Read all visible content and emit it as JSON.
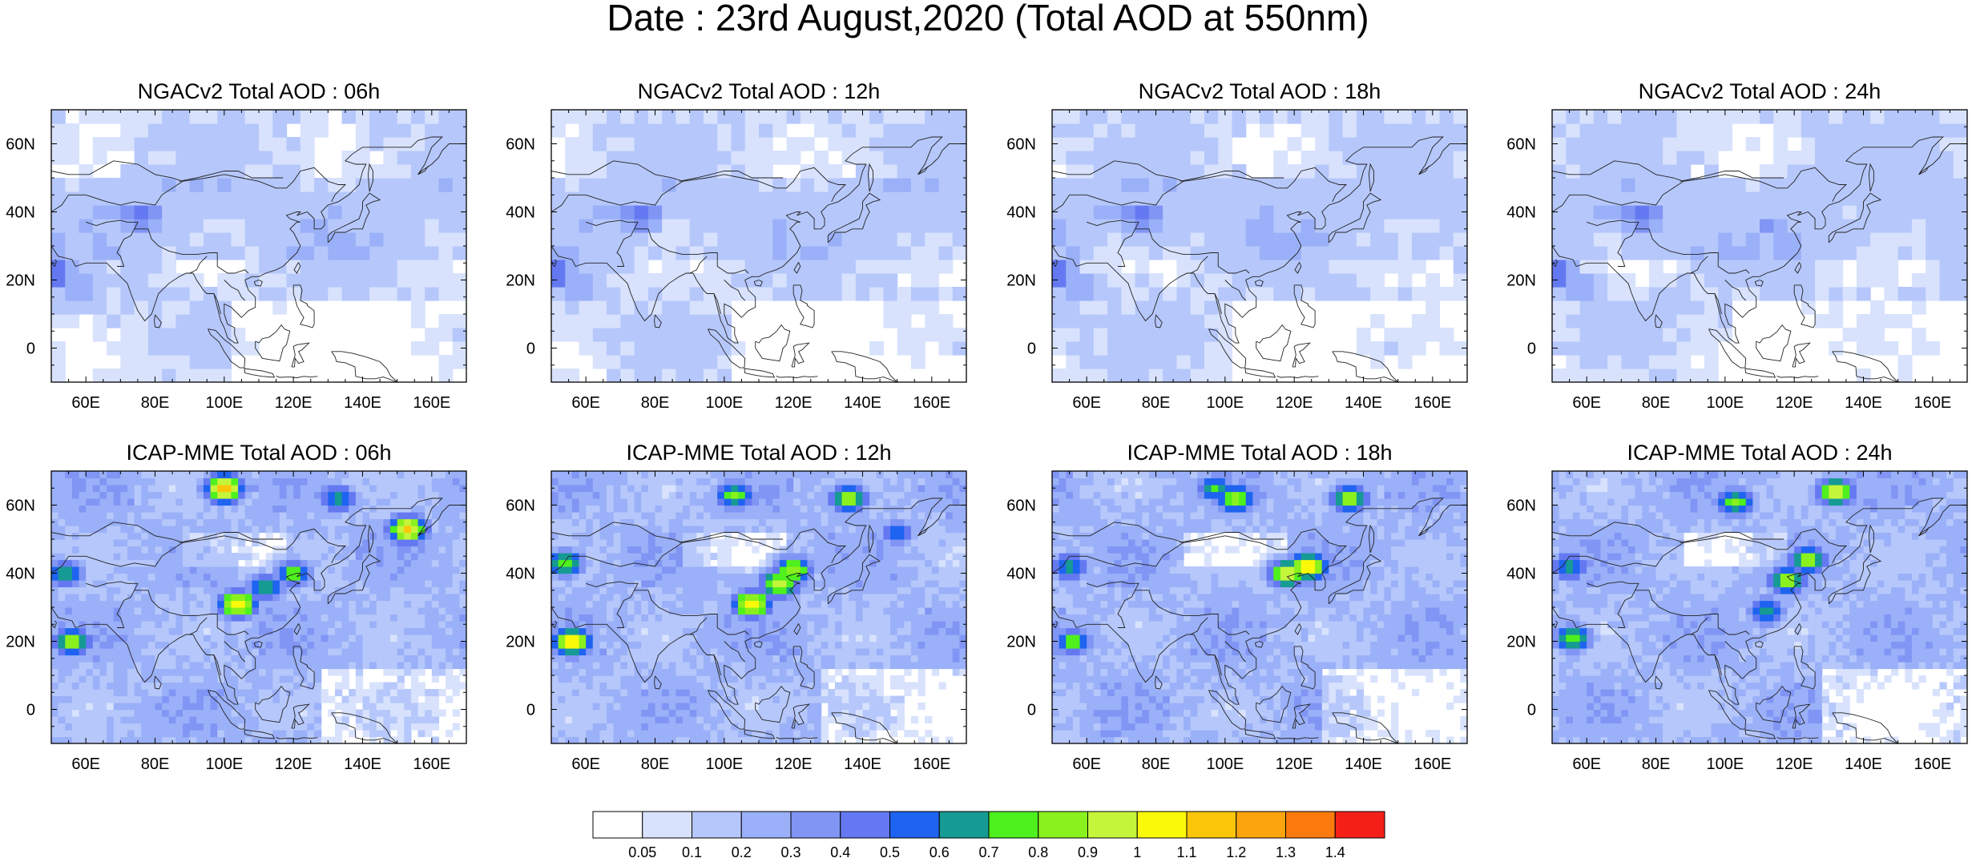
{
  "title": "Date : 23rd August,2020 (Total AOD at 550nm)",
  "panels": [
    {
      "title": "NGACv2 Total AOD : 06h",
      "model": "NGACv2",
      "hour": "06h"
    },
    {
      "title": "NGACv2 Total AOD : 12h",
      "model": "NGACv2",
      "hour": "12h"
    },
    {
      "title": "NGACv2 Total AOD : 18h",
      "model": "NGACv2",
      "hour": "18h"
    },
    {
      "title": "NGACv2 Total AOD : 24h",
      "model": "NGACv2",
      "hour": "24h"
    },
    {
      "title": "ICAP-MME Total AOD : 06h",
      "model": "ICAP-MME",
      "hour": "06h"
    },
    {
      "title": "ICAP-MME Total AOD : 12h",
      "model": "ICAP-MME",
      "hour": "12h"
    },
    {
      "title": "ICAP-MME Total AOD : 18h",
      "model": "ICAP-MME",
      "hour": "18h"
    },
    {
      "title": "ICAP-MME Total AOD : 24h",
      "model": "ICAP-MME",
      "hour": "24h"
    }
  ],
  "map_extent": {
    "lon": [
      50,
      170
    ],
    "lat": [
      -10,
      70
    ]
  },
  "lon_ticks": [
    "60E",
    "80E",
    "100E",
    "120E",
    "140E",
    "160E"
  ],
  "lon_tick_values": [
    60,
    80,
    100,
    120,
    140,
    160
  ],
  "lat_ticks": [
    "60N",
    "40N",
    "20N",
    "0"
  ],
  "lat_tick_values": [
    60,
    40,
    20,
    0
  ],
  "colorbar": {
    "labels": [
      "0.05",
      "0.1",
      "0.2",
      "0.3",
      "0.4",
      "0.5",
      "0.6",
      "0.7",
      "0.8",
      "0.9",
      "1",
      "1.1",
      "1.2",
      "1.3",
      "1.4"
    ],
    "colors": [
      "#ffffff",
      "#d8e2fd",
      "#b6c7fb",
      "#9ab0f8",
      "#8095f4",
      "#6479f1",
      "#1e64f0",
      "#169a94",
      "#4ef01e",
      "#8af01e",
      "#c4f53a",
      "#fbf90a",
      "#fbc60a",
      "#fba50e",
      "#fb7a0d",
      "#f42018"
    ]
  },
  "chart_data": {
    "type": "heatmap",
    "title": "Date : 23rd August,2020 (Total AOD at 550nm)",
    "variable": "Total AOD at 550nm",
    "xrange": [
      50,
      170
    ],
    "yrange": [
      -10,
      70
    ],
    "levels": [
      0.05,
      0.1,
      0.2,
      0.3,
      0.4,
      0.5,
      0.6,
      0.7,
      0.8,
      0.9,
      1,
      1.1,
      1.2,
      1.3,
      1.4
    ],
    "panels": [
      {
        "title": "NGACv2 Total AOD : 06h",
        "features": [
          {
            "lon": 52,
            "lat": 22,
            "aod": 0.5
          },
          {
            "lon": 58,
            "lat": 18,
            "aod": 0.4
          },
          {
            "lon": 76,
            "lat": 39,
            "aod": 0.5
          },
          {
            "lon": 65,
            "lat": 40,
            "aod": 0.3
          },
          {
            "lon": 100,
            "lat": 45,
            "aod": 0.2
          },
          {
            "lon": 115,
            "lat": 35,
            "aod": 0.2
          }
        ]
      },
      {
        "title": "NGACv2 Total AOD : 12h",
        "features": [
          {
            "lon": 52,
            "lat": 22,
            "aod": 0.5
          },
          {
            "lon": 58,
            "lat": 18,
            "aod": 0.4
          },
          {
            "lon": 76,
            "lat": 39,
            "aod": 0.5
          },
          {
            "lon": 65,
            "lat": 40,
            "aod": 0.3
          },
          {
            "lon": 105,
            "lat": 45,
            "aod": 0.2
          },
          {
            "lon": 118,
            "lat": 30,
            "aod": 0.2
          }
        ]
      },
      {
        "title": "NGACv2 Total AOD : 18h",
        "features": [
          {
            "lon": 52,
            "lat": 22,
            "aod": 0.5
          },
          {
            "lon": 58,
            "lat": 18,
            "aod": 0.4
          },
          {
            "lon": 76,
            "lat": 39,
            "aod": 0.5
          },
          {
            "lon": 65,
            "lat": 40,
            "aod": 0.3
          },
          {
            "lon": 112,
            "lat": 38,
            "aod": 0.3
          },
          {
            "lon": 120,
            "lat": 30,
            "aod": 0.3
          }
        ]
      },
      {
        "title": "NGACv2 Total AOD : 24h",
        "features": [
          {
            "lon": 52,
            "lat": 22,
            "aod": 0.5
          },
          {
            "lon": 58,
            "lat": 18,
            "aod": 0.4
          },
          {
            "lon": 76,
            "lat": 39,
            "aod": 0.5
          },
          {
            "lon": 65,
            "lat": 40,
            "aod": 0.3
          },
          {
            "lon": 112,
            "lat": 36,
            "aod": 0.3
          },
          {
            "lon": 118,
            "lat": 30,
            "aod": 0.3
          }
        ]
      },
      {
        "title": "ICAP-MME Total AOD : 06h",
        "features": [
          {
            "lon": 56,
            "lat": 20,
            "aod": 0.9
          },
          {
            "lon": 54,
            "lat": 40,
            "aod": 0.7
          },
          {
            "lon": 100,
            "lat": 65,
            "aod": 1.2
          },
          {
            "lon": 133,
            "lat": 62,
            "aod": 0.7
          },
          {
            "lon": 153,
            "lat": 53,
            "aod": 1.1
          },
          {
            "lon": 120,
            "lat": 40,
            "aod": 0.8
          },
          {
            "lon": 112,
            "lat": 36,
            "aod": 0.7
          },
          {
            "lon": 104,
            "lat": 31,
            "aod": 1.1
          }
        ]
      },
      {
        "title": "ICAP-MME Total AOD : 12h",
        "features": [
          {
            "lon": 56,
            "lat": 20,
            "aod": 1.1
          },
          {
            "lon": 54,
            "lat": 43,
            "aod": 0.8
          },
          {
            "lon": 103,
            "lat": 63,
            "aod": 0.8
          },
          {
            "lon": 136,
            "lat": 62,
            "aod": 0.9
          },
          {
            "lon": 120,
            "lat": 41,
            "aod": 0.9
          },
          {
            "lon": 116,
            "lat": 37,
            "aod": 1.0
          },
          {
            "lon": 108,
            "lat": 31,
            "aod": 1.1
          },
          {
            "lon": 150,
            "lat": 52,
            "aod": 0.6
          }
        ]
      },
      {
        "title": "ICAP-MME Total AOD : 18h",
        "features": [
          {
            "lon": 56,
            "lat": 20,
            "aod": 0.8
          },
          {
            "lon": 55,
            "lat": 42,
            "aod": 0.7
          },
          {
            "lon": 103,
            "lat": 62,
            "aod": 0.9
          },
          {
            "lon": 136,
            "lat": 62,
            "aod": 0.9
          },
          {
            "lon": 124,
            "lat": 42,
            "aod": 1.1
          },
          {
            "lon": 118,
            "lat": 40,
            "aod": 1.0
          },
          {
            "lon": 97,
            "lat": 65,
            "aod": 0.7
          }
        ]
      },
      {
        "title": "ICAP-MME Total AOD : 24h",
        "features": [
          {
            "lon": 56,
            "lat": 21,
            "aod": 0.8
          },
          {
            "lon": 55,
            "lat": 42,
            "aod": 0.7
          },
          {
            "lon": 103,
            "lat": 61,
            "aod": 0.8
          },
          {
            "lon": 132,
            "lat": 64,
            "aod": 1.0
          },
          {
            "lon": 124,
            "lat": 44,
            "aod": 0.9
          },
          {
            "lon": 118,
            "lat": 38,
            "aod": 0.9
          },
          {
            "lon": 112,
            "lat": 29,
            "aod": 0.7
          }
        ]
      }
    ]
  }
}
